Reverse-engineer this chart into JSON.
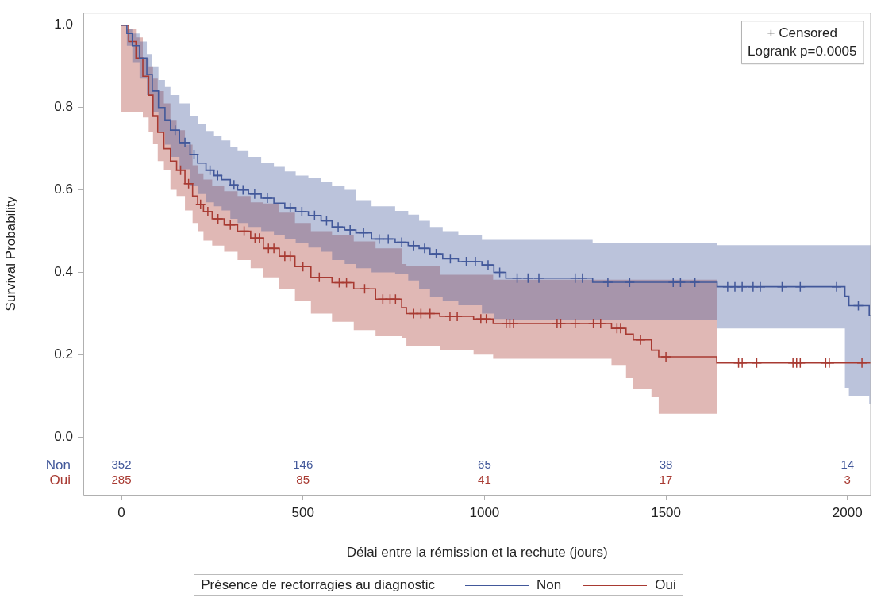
{
  "chart_data": {
    "type": "step",
    "xlabel": "Délai entre la rémission et la rechute (jours)",
    "ylabel": "Survival Probability",
    "legend_title": "Présence de rectorragies au diagnostic",
    "legend": "bottom",
    "xlim": [
      -105,
      2065
    ],
    "xticks": [
      0,
      500,
      1000,
      1500,
      2000
    ],
    "ylim": [
      -0.14,
      1.03
    ],
    "yticks": [
      {
        "value": 0,
        "label": "0.0"
      },
      {
        "value": 0.2,
        "label": "0.2"
      },
      {
        "value": 0.4,
        "label": "0.4"
      },
      {
        "value": 0.6,
        "label": "0.6"
      },
      {
        "value": 0.8,
        "label": "0.8"
      },
      {
        "value": 1,
        "label": "1.0"
      }
    ],
    "series": [
      {
        "name": "Non",
        "color": "#42589a",
        "x": [
          0,
          15,
          30,
          50,
          70,
          85,
          102,
          120,
          135,
          160,
          189,
          210,
          233,
          255,
          276,
          300,
          320,
          350,
          385,
          420,
          450,
          480,
          515,
          550,
          580,
          615,
          646,
          689,
          754,
          790,
          820,
          850,
          885,
          928,
          993,
          1026,
          1059,
          1298,
          1641,
          1993,
          2004,
          2060,
          2065
        ],
        "values": [
          1.0,
          0.98,
          0.95,
          0.92,
          0.88,
          0.84,
          0.8,
          0.77,
          0.745,
          0.715,
          0.686,
          0.665,
          0.648,
          0.635,
          0.625,
          0.612,
          0.6,
          0.59,
          0.58,
          0.568,
          0.557,
          0.547,
          0.538,
          0.525,
          0.51,
          0.503,
          0.496,
          0.481,
          0.473,
          0.465,
          0.458,
          0.445,
          0.433,
          0.426,
          0.418,
          0.4,
          0.386,
          0.376,
          0.365,
          0.342,
          0.319,
          0.295,
          0.295
        ],
        "upper": [
          1.0,
          0.99,
          0.98,
          0.96,
          0.93,
          0.9,
          0.867,
          0.85,
          0.83,
          0.81,
          0.78,
          0.76,
          0.743,
          0.73,
          0.72,
          0.705,
          0.696,
          0.68,
          0.665,
          0.658,
          0.645,
          0.635,
          0.629,
          0.62,
          0.61,
          0.6,
          0.575,
          0.56,
          0.549,
          0.54,
          0.525,
          0.51,
          0.5,
          0.49,
          0.479,
          0.479,
          0.479,
          0.471,
          0.466,
          0.466,
          0.466,
          0.466,
          0.466
        ],
        "lower": [
          1.0,
          0.95,
          0.91,
          0.87,
          0.83,
          0.79,
          0.74,
          0.71,
          0.68,
          0.65,
          0.61,
          0.59,
          0.57,
          0.56,
          0.55,
          0.53,
          0.52,
          0.51,
          0.5,
          0.49,
          0.48,
          0.47,
          0.46,
          0.45,
          0.43,
          0.42,
          0.41,
          0.4,
          0.395,
          0.38,
          0.36,
          0.34,
          0.33,
          0.32,
          0.3,
          0.287,
          0.285,
          0.285,
          0.264,
          0.12,
          0.1,
          0.08,
          0.08
        ]
      },
      {
        "name": "Oui",
        "color": "#a83a32",
        "x": [
          0,
          20,
          40,
          59,
          75,
          87,
          100,
          117,
          135,
          152,
          175,
          196,
          210,
          226,
          250,
          283,
          320,
          356,
          391,
          435,
          478,
          522,
          580,
          640,
          700,
          772,
          785,
          877,
          970,
          1024,
          1350,
          1390,
          1410,
          1460,
          1480,
          1640,
          2065
        ],
        "values": [
          1.0,
          0.96,
          0.92,
          0.876,
          0.83,
          0.78,
          0.74,
          0.7,
          0.67,
          0.648,
          0.615,
          0.585,
          0.565,
          0.547,
          0.53,
          0.515,
          0.5,
          0.483,
          0.458,
          0.439,
          0.414,
          0.388,
          0.375,
          0.36,
          0.335,
          0.314,
          0.3,
          0.293,
          0.287,
          0.276,
          0.264,
          0.25,
          0.236,
          0.211,
          0.195,
          0.18,
          0.18
        ],
        "upper": [
          1.0,
          0.99,
          0.97,
          0.92,
          0.9,
          0.87,
          0.84,
          0.81,
          0.77,
          0.745,
          0.71,
          0.66,
          0.64,
          0.625,
          0.61,
          0.597,
          0.585,
          0.57,
          0.567,
          0.545,
          0.52,
          0.5,
          0.49,
          0.475,
          0.458,
          0.42,
          0.415,
          0.394,
          0.394,
          0.382,
          0.382,
          0.382,
          0.382,
          0.382,
          0.382,
          0.382,
          null
        ],
        "lower": [
          0.79,
          0.79,
          0.79,
          0.776,
          0.74,
          0.711,
          0.67,
          0.648,
          0.6,
          0.585,
          0.55,
          0.52,
          0.5,
          0.477,
          0.465,
          0.45,
          0.43,
          0.41,
          0.388,
          0.36,
          0.33,
          0.3,
          0.28,
          0.26,
          0.245,
          0.241,
          0.222,
          0.211,
          0.2,
          0.19,
          0.175,
          0.143,
          0.118,
          0.097,
          0.057,
          0.057,
          null
        ]
      },
      {
        "type": "scatter",
        "marker": "cross",
        "color": "#42589a",
        "x": [
          148,
          175,
          200,
          244,
          265,
          310,
          335,
          367,
          402,
          465,
          497,
          532,
          565,
          597,
          630,
          667,
          710,
          735,
          772,
          805,
          835,
          867,
          906,
          950,
          975,
          1010,
          1042,
          1090,
          1120,
          1150,
          1250,
          1270,
          1340,
          1400,
          1520,
          1540,
          1580,
          1670,
          1690,
          1710,
          1740,
          1760,
          1820,
          1870,
          1970,
          2030
        ],
        "values": [
          0.745,
          0.715,
          0.686,
          0.648,
          0.635,
          0.612,
          0.6,
          0.59,
          0.58,
          0.557,
          0.547,
          0.538,
          0.525,
          0.51,
          0.503,
          0.496,
          0.481,
          0.481,
          0.473,
          0.465,
          0.458,
          0.445,
          0.433,
          0.426,
          0.426,
          0.418,
          0.4,
          0.386,
          0.386,
          0.386,
          0.386,
          0.386,
          0.376,
          0.376,
          0.376,
          0.376,
          0.376,
          0.365,
          0.365,
          0.365,
          0.365,
          0.365,
          0.365,
          0.365,
          0.365,
          0.319
        ]
      },
      {
        "type": "scatter",
        "marker": "cross",
        "color": "#a83a32",
        "x": [
          163,
          185,
          218,
          238,
          266,
          300,
          338,
          368,
          380,
          405,
          420,
          450,
          465,
          500,
          545,
          600,
          620,
          670,
          720,
          740,
          755,
          805,
          825,
          850,
          905,
          925,
          990,
          1005,
          1060,
          1070,
          1080,
          1200,
          1210,
          1250,
          1300,
          1320,
          1365,
          1375,
          1430,
          1500,
          1700,
          1710,
          1750,
          1850,
          1860,
          1870,
          1940,
          1950,
          2040
        ],
        "values": [
          0.648,
          0.615,
          0.565,
          0.547,
          0.53,
          0.515,
          0.5,
          0.483,
          0.483,
          0.458,
          0.458,
          0.439,
          0.439,
          0.414,
          0.388,
          0.375,
          0.375,
          0.36,
          0.335,
          0.335,
          0.335,
          0.3,
          0.3,
          0.3,
          0.293,
          0.293,
          0.287,
          0.287,
          0.276,
          0.276,
          0.276,
          0.276,
          0.276,
          0.276,
          0.276,
          0.276,
          0.264,
          0.264,
          0.236,
          0.195,
          0.18,
          0.18,
          0.18,
          0.18,
          0.18,
          0.18,
          0.18,
          0.18,
          0.18
        ]
      }
    ],
    "annotations": [
      "+ Censored",
      "Logrank p=0.0005",
      "352",
      "146",
      "65",
      "38",
      "14",
      "285",
      "85",
      "41",
      "17",
      "3"
    ]
  }
}
